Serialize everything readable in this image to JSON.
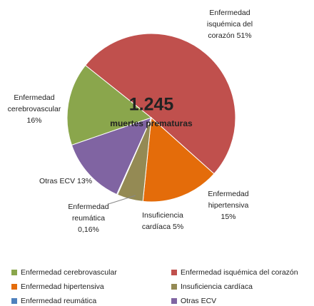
{
  "chart_data": {
    "type": "pie",
    "center_title": "1.245",
    "center_subtitle": "muertes prematuras",
    "categories": [
      "Enfermedad cerebrovascular",
      "Enfermedad isquémica del corazón",
      "Enfermedad hipertensiva",
      "Insuficiencia cardíaca",
      "Enfermedad reumática",
      "Otras ECV"
    ],
    "values": [
      16,
      51,
      15,
      5,
      0.16,
      13
    ],
    "value_labels": [
      [
        "Enfermedad",
        "cerebrovascular",
        "16%"
      ],
      [
        "Enfermedad",
        "isquémica del",
        "corazón 51%"
      ],
      [
        "Enfermedad",
        "hipertensiva",
        "15%"
      ],
      [
        "Insuficiencia",
        "cardíaca 5%"
      ],
      [
        "Enfermedad",
        "reumática",
        "0,16%"
      ],
      [
        "Otras ECV 13%"
      ]
    ],
    "colors": [
      "#8aa64c",
      "#c0504d",
      "#e46c0a",
      "#948a54",
      "#4f81bd",
      "#8064a2"
    ],
    "legend": "bottom"
  }
}
